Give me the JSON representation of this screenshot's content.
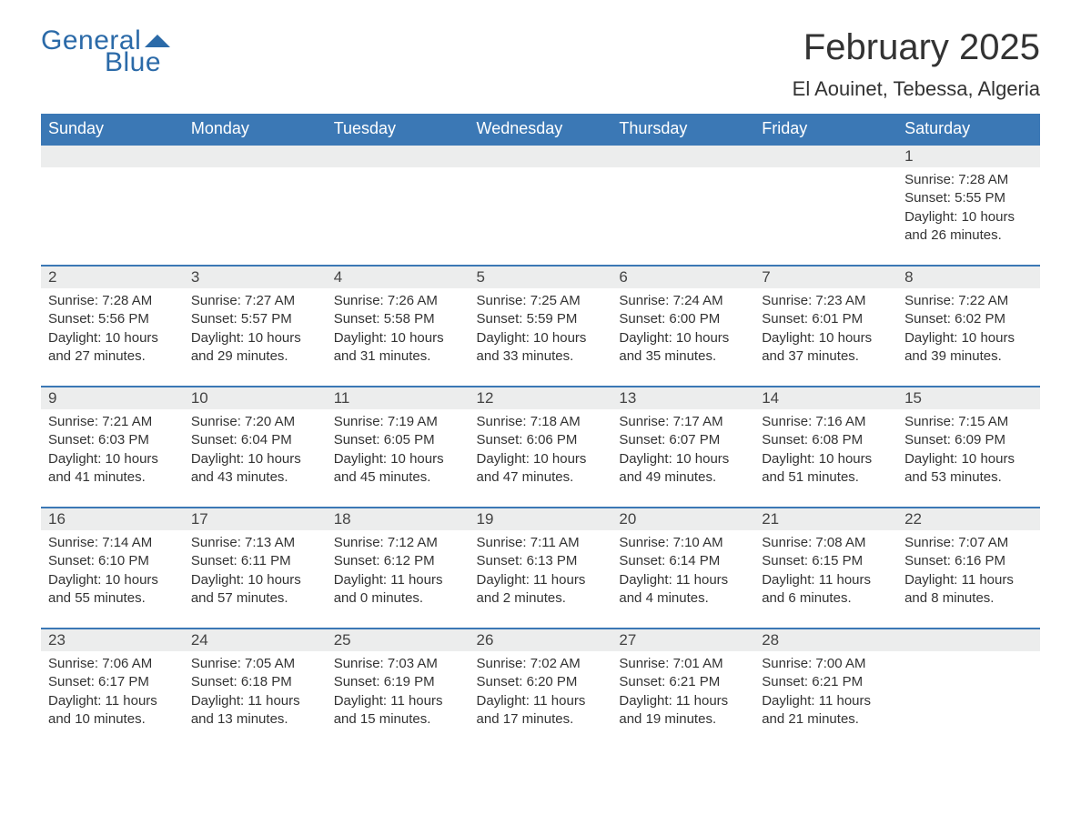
{
  "logo": {
    "text1": "General",
    "text2": "Blue",
    "flag_color": "#2b6aa8"
  },
  "title": "February 2025",
  "location": "El Aouinet, Tebessa, Algeria",
  "colors": {
    "header_bg": "#3b78b5",
    "header_text": "#ffffff",
    "dayrow_bg": "#eceded",
    "dayrow_border": "#3b78b5",
    "body_text": "#333333",
    "logo_color": "#2b6aa8",
    "page_bg": "#ffffff"
  },
  "weekdays": [
    "Sunday",
    "Monday",
    "Tuesday",
    "Wednesday",
    "Thursday",
    "Friday",
    "Saturday"
  ],
  "weeks": [
    [
      null,
      null,
      null,
      null,
      null,
      null,
      {
        "n": "1",
        "sunrise": "7:28 AM",
        "sunset": "5:55 PM",
        "daylight": "10 hours and 26 minutes."
      }
    ],
    [
      {
        "n": "2",
        "sunrise": "7:28 AM",
        "sunset": "5:56 PM",
        "daylight": "10 hours and 27 minutes."
      },
      {
        "n": "3",
        "sunrise": "7:27 AM",
        "sunset": "5:57 PM",
        "daylight": "10 hours and 29 minutes."
      },
      {
        "n": "4",
        "sunrise": "7:26 AM",
        "sunset": "5:58 PM",
        "daylight": "10 hours and 31 minutes."
      },
      {
        "n": "5",
        "sunrise": "7:25 AM",
        "sunset": "5:59 PM",
        "daylight": "10 hours and 33 minutes."
      },
      {
        "n": "6",
        "sunrise": "7:24 AM",
        "sunset": "6:00 PM",
        "daylight": "10 hours and 35 minutes."
      },
      {
        "n": "7",
        "sunrise": "7:23 AM",
        "sunset": "6:01 PM",
        "daylight": "10 hours and 37 minutes."
      },
      {
        "n": "8",
        "sunrise": "7:22 AM",
        "sunset": "6:02 PM",
        "daylight": "10 hours and 39 minutes."
      }
    ],
    [
      {
        "n": "9",
        "sunrise": "7:21 AM",
        "sunset": "6:03 PM",
        "daylight": "10 hours and 41 minutes."
      },
      {
        "n": "10",
        "sunrise": "7:20 AM",
        "sunset": "6:04 PM",
        "daylight": "10 hours and 43 minutes."
      },
      {
        "n": "11",
        "sunrise": "7:19 AM",
        "sunset": "6:05 PM",
        "daylight": "10 hours and 45 minutes."
      },
      {
        "n": "12",
        "sunrise": "7:18 AM",
        "sunset": "6:06 PM",
        "daylight": "10 hours and 47 minutes."
      },
      {
        "n": "13",
        "sunrise": "7:17 AM",
        "sunset": "6:07 PM",
        "daylight": "10 hours and 49 minutes."
      },
      {
        "n": "14",
        "sunrise": "7:16 AM",
        "sunset": "6:08 PM",
        "daylight": "10 hours and 51 minutes."
      },
      {
        "n": "15",
        "sunrise": "7:15 AM",
        "sunset": "6:09 PM",
        "daylight": "10 hours and 53 minutes."
      }
    ],
    [
      {
        "n": "16",
        "sunrise": "7:14 AM",
        "sunset": "6:10 PM",
        "daylight": "10 hours and 55 minutes."
      },
      {
        "n": "17",
        "sunrise": "7:13 AM",
        "sunset": "6:11 PM",
        "daylight": "10 hours and 57 minutes."
      },
      {
        "n": "18",
        "sunrise": "7:12 AM",
        "sunset": "6:12 PM",
        "daylight": "11 hours and 0 minutes."
      },
      {
        "n": "19",
        "sunrise": "7:11 AM",
        "sunset": "6:13 PM",
        "daylight": "11 hours and 2 minutes."
      },
      {
        "n": "20",
        "sunrise": "7:10 AM",
        "sunset": "6:14 PM",
        "daylight": "11 hours and 4 minutes."
      },
      {
        "n": "21",
        "sunrise": "7:08 AM",
        "sunset": "6:15 PM",
        "daylight": "11 hours and 6 minutes."
      },
      {
        "n": "22",
        "sunrise": "7:07 AM",
        "sunset": "6:16 PM",
        "daylight": "11 hours and 8 minutes."
      }
    ],
    [
      {
        "n": "23",
        "sunrise": "7:06 AM",
        "sunset": "6:17 PM",
        "daylight": "11 hours and 10 minutes."
      },
      {
        "n": "24",
        "sunrise": "7:05 AM",
        "sunset": "6:18 PM",
        "daylight": "11 hours and 13 minutes."
      },
      {
        "n": "25",
        "sunrise": "7:03 AM",
        "sunset": "6:19 PM",
        "daylight": "11 hours and 15 minutes."
      },
      {
        "n": "26",
        "sunrise": "7:02 AM",
        "sunset": "6:20 PM",
        "daylight": "11 hours and 17 minutes."
      },
      {
        "n": "27",
        "sunrise": "7:01 AM",
        "sunset": "6:21 PM",
        "daylight": "11 hours and 19 minutes."
      },
      {
        "n": "28",
        "sunrise": "7:00 AM",
        "sunset": "6:21 PM",
        "daylight": "11 hours and 21 minutes."
      },
      null
    ]
  ],
  "labels": {
    "sunrise": "Sunrise:",
    "sunset": "Sunset:",
    "daylight": "Daylight:"
  }
}
